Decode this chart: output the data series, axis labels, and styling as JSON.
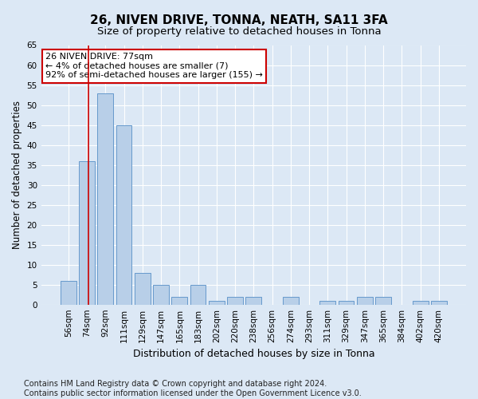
{
  "title": "26, NIVEN DRIVE, TONNA, NEATH, SA11 3FA",
  "subtitle": "Size of property relative to detached houses in Tonna",
  "xlabel": "Distribution of detached houses by size in Tonna",
  "ylabel": "Number of detached properties",
  "categories": [
    "56sqm",
    "74sqm",
    "92sqm",
    "111sqm",
    "129sqm",
    "147sqm",
    "165sqm",
    "183sqm",
    "202sqm",
    "220sqm",
    "238sqm",
    "256sqm",
    "274sqm",
    "293sqm",
    "311sqm",
    "329sqm",
    "347sqm",
    "365sqm",
    "384sqm",
    "402sqm",
    "420sqm"
  ],
  "values": [
    6,
    36,
    53,
    45,
    8,
    5,
    2,
    5,
    1,
    2,
    2,
    0,
    2,
    0,
    1,
    1,
    2,
    2,
    0,
    1,
    1
  ],
  "bar_color": "#b8cfe8",
  "bar_edge_color": "#6699cc",
  "vline_x": 1.08,
  "vline_color": "#cc0000",
  "annotation_text": "26 NIVEN DRIVE: 77sqm\n← 4% of detached houses are smaller (7)\n92% of semi-detached houses are larger (155) →",
  "annotation_box_color": "#ffffff",
  "annotation_box_edge_color": "#cc0000",
  "ylim": [
    0,
    65
  ],
  "yticks": [
    0,
    5,
    10,
    15,
    20,
    25,
    30,
    35,
    40,
    45,
    50,
    55,
    60,
    65
  ],
  "background_color": "#dce8f5",
  "grid_color": "#ffffff",
  "footer_text": "Contains HM Land Registry data © Crown copyright and database right 2024.\nContains public sector information licensed under the Open Government Licence v3.0.",
  "title_fontsize": 11,
  "subtitle_fontsize": 9.5,
  "xlabel_fontsize": 9,
  "ylabel_fontsize": 8.5,
  "tick_fontsize": 7.5,
  "annotation_fontsize": 8,
  "footer_fontsize": 7
}
